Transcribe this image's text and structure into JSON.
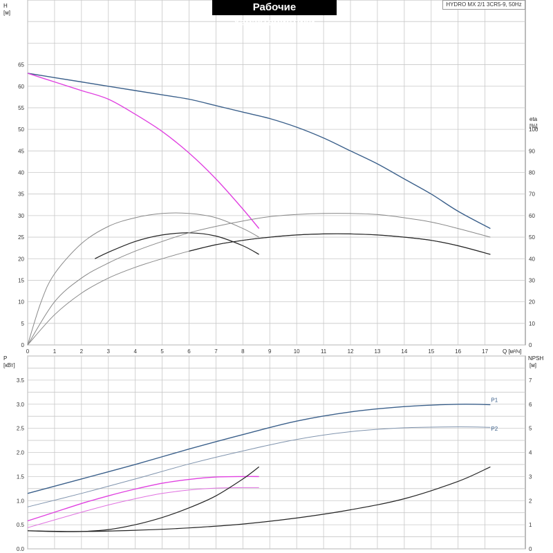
{
  "title": "Рабочие характеристики",
  "model": "HYDRO MX 2/1 3CR5-9, 50Hz",
  "labels": {
    "h_axis": "H",
    "h_unit": "[м]",
    "eta_axis": "eta",
    "eta_unit": "[%]",
    "q_axis": "Q [м³/ч]",
    "p_axis": "P",
    "p_unit": "[кВт]",
    "npsh_axis": "NPSH",
    "npsh_unit": "[м]"
  },
  "chart_data": [
    {
      "type": "line",
      "xlabel": "Q [м³/ч]",
      "ylabel": "H [м]",
      "ylabel_right": "eta [%]",
      "xlim": [
        0,
        18.5
      ],
      "ylim": [
        0,
        80
      ],
      "ylim_right": [
        0,
        160
      ],
      "x_ticks": [
        0,
        1,
        2,
        3,
        4,
        5,
        6,
        7,
        8,
        9,
        10,
        11,
        12,
        13,
        14,
        15,
        16,
        17
      ],
      "y_ticks": [
        0,
        5,
        10,
        15,
        20,
        25,
        30,
        35,
        40,
        45,
        50,
        55,
        60,
        65
      ],
      "y_ticks_right": [
        0,
        10,
        20,
        30,
        40,
        50,
        60,
        70,
        80,
        90,
        100
      ],
      "grid": true,
      "series": [
        {
          "axis": "left",
          "color": "#3a5f8a",
          "width": 1.4,
          "points": [
            [
              0,
              63
            ],
            [
              1,
              62
            ],
            [
              2,
              61
            ],
            [
              3,
              60
            ],
            [
              4,
              59
            ],
            [
              5,
              58
            ],
            [
              6,
              57
            ],
            [
              7,
              55.5
            ],
            [
              8,
              54
            ],
            [
              9,
              52.5
            ],
            [
              10,
              50.5
            ],
            [
              11,
              48
            ],
            [
              12,
              45
            ],
            [
              13,
              42
            ],
            [
              14,
              38.5
            ],
            [
              15,
              35
            ],
            [
              16,
              31
            ],
            [
              17.2,
              27
            ]
          ]
        },
        {
          "axis": "left",
          "color": "#e040e0",
          "width": 1.4,
          "points": [
            [
              0,
              63
            ],
            [
              1,
              61
            ],
            [
              2,
              59
            ],
            [
              3,
              57
            ],
            [
              4,
              53.5
            ],
            [
              5,
              49.5
            ],
            [
              6,
              44.5
            ],
            [
              7,
              38.5
            ],
            [
              8,
              31.5
            ],
            [
              8.6,
              27
            ]
          ]
        },
        {
          "axis": "right",
          "color": "#888888",
          "width": 1.0,
          "points": [
            [
              0,
              0
            ],
            [
              0.5,
              20
            ],
            [
              1,
              33
            ],
            [
              2,
              47
            ],
            [
              3,
              55
            ],
            [
              4,
              59
            ],
            [
              5,
              61
            ],
            [
              6,
              61
            ],
            [
              7,
              59
            ],
            [
              8,
              54
            ],
            [
              8.6,
              50
            ]
          ]
        },
        {
          "axis": "right",
          "color": "#222222",
          "width": 1.2,
          "points": [
            [
              2.5,
              40
            ],
            [
              3,
              43
            ],
            [
              4,
              48
            ],
            [
              5,
              51
            ],
            [
              6,
              52
            ],
            [
              7,
              50.5
            ],
            [
              8,
              46
            ],
            [
              8.6,
              42
            ]
          ]
        },
        {
          "axis": "right",
          "color": "#888888",
          "width": 1.0,
          "points": [
            [
              0,
              0
            ],
            [
              1,
              20
            ],
            [
              2,
              31
            ],
            [
              3,
              38
            ],
            [
              4,
              43.5
            ],
            [
              5,
              48
            ],
            [
              6,
              52
            ],
            [
              7,
              55
            ],
            [
              8,
              57.5
            ],
            [
              9,
              59.5
            ],
            [
              10,
              60.5
            ],
            [
              11,
              61
            ],
            [
              12,
              61
            ],
            [
              13,
              60.5
            ],
            [
              14,
              59
            ],
            [
              15,
              57
            ],
            [
              16,
              54
            ],
            [
              17.2,
              50
            ]
          ]
        },
        {
          "axis": "right",
          "color": "#888888",
          "width": 1.0,
          "points": [
            [
              0,
              0
            ],
            [
              1,
              14
            ],
            [
              2,
              24
            ],
            [
              3,
              31
            ],
            [
              4,
              36
            ],
            [
              5,
              40
            ],
            [
              6,
              43.5
            ],
            [
              7,
              46.5
            ],
            [
              8,
              48.5
            ],
            [
              9,
              50
            ],
            [
              10,
              51
            ],
            [
              11,
              51.5
            ],
            [
              12,
              51.5
            ],
            [
              13,
              51
            ],
            [
              14,
              50
            ],
            [
              15,
              48.5
            ],
            [
              16,
              46
            ],
            [
              17.2,
              42
            ]
          ]
        },
        {
          "axis": "right",
          "color": "#222222",
          "width": 1.2,
          "points": [
            [
              6,
              43.5
            ],
            [
              7,
              46.5
            ],
            [
              8,
              48.5
            ],
            [
              9,
              50
            ],
            [
              10,
              51
            ],
            [
              11,
              51.5
            ],
            [
              12,
              51.5
            ],
            [
              13,
              51
            ],
            [
              14,
              50
            ],
            [
              15,
              48.5
            ],
            [
              16,
              46
            ],
            [
              17.2,
              42
            ]
          ]
        }
      ]
    },
    {
      "type": "line",
      "xlabel": "",
      "ylabel": "P [кВт]",
      "ylabel_right": "NPSH [м]",
      "xlim": [
        0,
        18.5
      ],
      "ylim": [
        0,
        4
      ],
      "ylim_right": [
        0,
        8
      ],
      "y_ticks": [
        0.0,
        0.5,
        1.0,
        1.5,
        2.0,
        2.5,
        3.0,
        3.5
      ],
      "y_ticks_right": [
        0,
        1,
        2,
        3,
        4,
        5,
        6,
        7
      ],
      "grid": true,
      "series": [
        {
          "name": "P1",
          "axis": "left",
          "color": "#3a5f8a",
          "width": 1.4,
          "points": [
            [
              0,
              1.15
            ],
            [
              2,
              1.45
            ],
            [
              4,
              1.75
            ],
            [
              6,
              2.07
            ],
            [
              8,
              2.37
            ],
            [
              10,
              2.65
            ],
            [
              12,
              2.84
            ],
            [
              14,
              2.95
            ],
            [
              16,
              3.0
            ],
            [
              17.2,
              2.99
            ]
          ]
        },
        {
          "name": "P2",
          "axis": "left",
          "color": "#7f93ad",
          "width": 1.0,
          "points": [
            [
              0,
              0.87
            ],
            [
              2,
              1.15
            ],
            [
              4,
              1.45
            ],
            [
              6,
              1.76
            ],
            [
              8,
              2.03
            ],
            [
              10,
              2.27
            ],
            [
              12,
              2.43
            ],
            [
              14,
              2.51
            ],
            [
              16,
              2.53
            ],
            [
              17.2,
              2.52
            ]
          ]
        },
        {
          "axis": "left",
          "color": "#e040e0",
          "width": 1.4,
          "points": [
            [
              0,
              0.58
            ],
            [
              1,
              0.76
            ],
            [
              2,
              0.94
            ],
            [
              3,
              1.1
            ],
            [
              4,
              1.24
            ],
            [
              5,
              1.36
            ],
            [
              6,
              1.44
            ],
            [
              7,
              1.49
            ],
            [
              8,
              1.5
            ],
            [
              8.6,
              1.5
            ]
          ]
        },
        {
          "axis": "left",
          "color": "#e070e0",
          "width": 1.0,
          "points": [
            [
              0,
              0.44
            ],
            [
              1,
              0.6
            ],
            [
              2,
              0.76
            ],
            [
              3,
              0.91
            ],
            [
              4,
              1.04
            ],
            [
              5,
              1.15
            ],
            [
              6,
              1.22
            ],
            [
              7,
              1.26
            ],
            [
              8,
              1.27
            ],
            [
              8.6,
              1.27
            ]
          ]
        },
        {
          "axis": "right",
          "color": "#222222",
          "width": 1.2,
          "points": [
            [
              0,
              0.75
            ],
            [
              1,
              0.72
            ],
            [
              2,
              0.72
            ],
            [
              3,
              0.8
            ],
            [
              4,
              1.0
            ],
            [
              5,
              1.3
            ],
            [
              6,
              1.7
            ],
            [
              7,
              2.2
            ],
            [
              8,
              2.9
            ],
            [
              8.6,
              3.4
            ]
          ]
        },
        {
          "axis": "right",
          "color": "#222222",
          "width": 1.2,
          "points": [
            [
              0,
              0.75
            ],
            [
              2,
              0.72
            ],
            [
              4,
              0.77
            ],
            [
              6,
              0.87
            ],
            [
              8,
              1.03
            ],
            [
              10,
              1.28
            ],
            [
              12,
              1.62
            ],
            [
              14,
              2.08
            ],
            [
              16,
              2.8
            ],
            [
              17.2,
              3.4
            ]
          ]
        }
      ],
      "legend_labels": [
        {
          "text": "P1",
          "x": 17.2,
          "y": 3.05
        },
        {
          "text": "P2",
          "x": 17.2,
          "y": 2.45
        }
      ]
    }
  ]
}
